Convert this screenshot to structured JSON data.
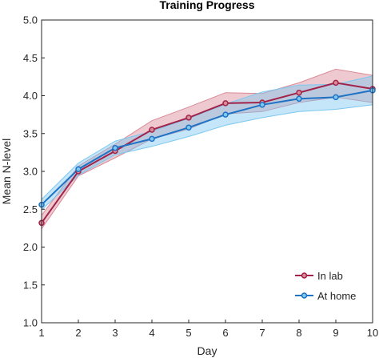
{
  "chart_data": {
    "type": "line",
    "title": "Training Progress",
    "xlabel": "Day",
    "ylabel": "Mean N-level",
    "x": [
      1,
      2,
      3,
      4,
      5,
      6,
      7,
      8,
      9,
      10
    ],
    "xlim": [
      1,
      10
    ],
    "ylim": [
      1.0,
      5.0
    ],
    "xticks": [
      "1",
      "2",
      "3",
      "4",
      "5",
      "6",
      "7",
      "8",
      "9",
      "10"
    ],
    "yticks": [
      "1.0",
      "1.5",
      "2.0",
      "2.5",
      "3.0",
      "3.5",
      "4.0",
      "4.5",
      "5.0"
    ],
    "ytick_values": [
      1.0,
      1.5,
      2.0,
      2.5,
      3.0,
      3.5,
      4.0,
      4.5,
      5.0
    ],
    "grid": false,
    "legend_position": "bottom-right",
    "series": [
      {
        "name": "In lab",
        "color": "#a2234a",
        "band_color": "#d98a97",
        "values": [
          2.32,
          3.0,
          3.27,
          3.55,
          3.71,
          3.9,
          3.91,
          4.04,
          4.17,
          4.09
        ],
        "lower": [
          2.24,
          2.94,
          3.18,
          3.43,
          3.56,
          3.76,
          3.79,
          3.91,
          3.98,
          3.91
        ],
        "upper": [
          2.42,
          3.07,
          3.36,
          3.67,
          3.85,
          4.04,
          4.03,
          4.17,
          4.35,
          4.27
        ]
      },
      {
        "name": "At home",
        "color": "#1f72c4",
        "band_color": "#7cc8f0",
        "values": [
          2.56,
          3.03,
          3.31,
          3.43,
          3.58,
          3.75,
          3.88,
          3.96,
          3.98,
          4.07
        ],
        "lower": [
          2.49,
          2.95,
          3.22,
          3.33,
          3.46,
          3.61,
          3.71,
          3.79,
          3.82,
          3.88
        ],
        "upper": [
          2.63,
          3.11,
          3.4,
          3.53,
          3.7,
          3.89,
          4.05,
          4.14,
          4.15,
          4.26
        ]
      }
    ]
  }
}
